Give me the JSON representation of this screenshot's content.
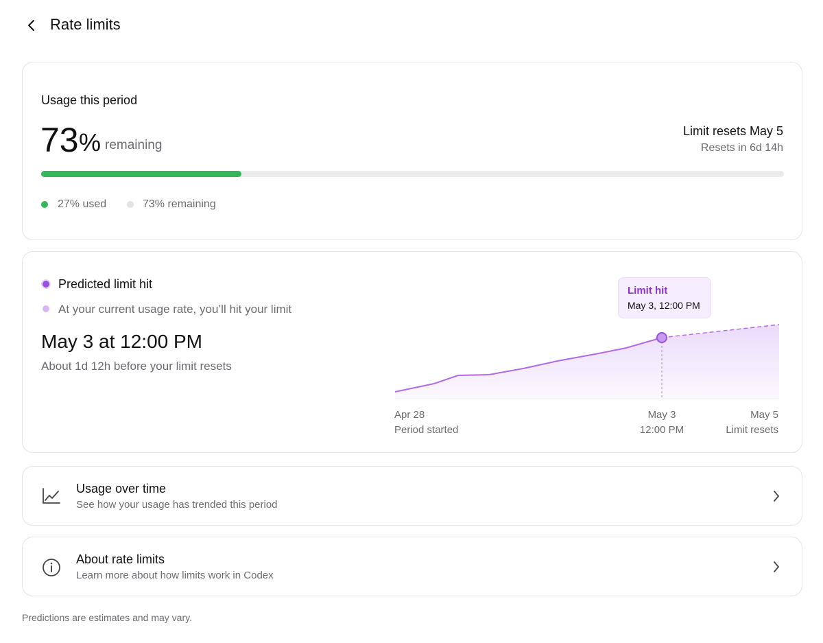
{
  "header": {
    "title": "Rate limits"
  },
  "usage": {
    "heading": "Usage this period",
    "remaining_value": 73,
    "unit": "%",
    "remaining_word": "remaining",
    "reset_title": "Limit resets May 5",
    "reset_countdown": "Resets in 6d 14h",
    "used": 27,
    "used_label": "27% used",
    "remaining_label": "73% remaining"
  },
  "prediction": {
    "heading": "Predicted limit hit",
    "description": "At your current usage rate, you’ll hit your limit",
    "date": "May 3 at 12:00 PM",
    "note": "About 1d 12h before your limit resets",
    "tooltip": {
      "title": "Limit hit",
      "time": "May 3, 12:00 PM"
    },
    "axis": [
      {
        "date": "Apr 28",
        "caption": "Period started"
      },
      {
        "date": "May 3",
        "caption": "12:00 PM"
      },
      {
        "date": "May 5",
        "caption": "Limit resets"
      }
    ]
  },
  "links": [
    {
      "title": "Usage over time",
      "subtitle": "See how your usage has trended this period"
    },
    {
      "title": "About rate limits",
      "subtitle": "Learn more about how limits work in Codex"
    }
  ],
  "footer": "Predictions are estimates and may vary."
}
